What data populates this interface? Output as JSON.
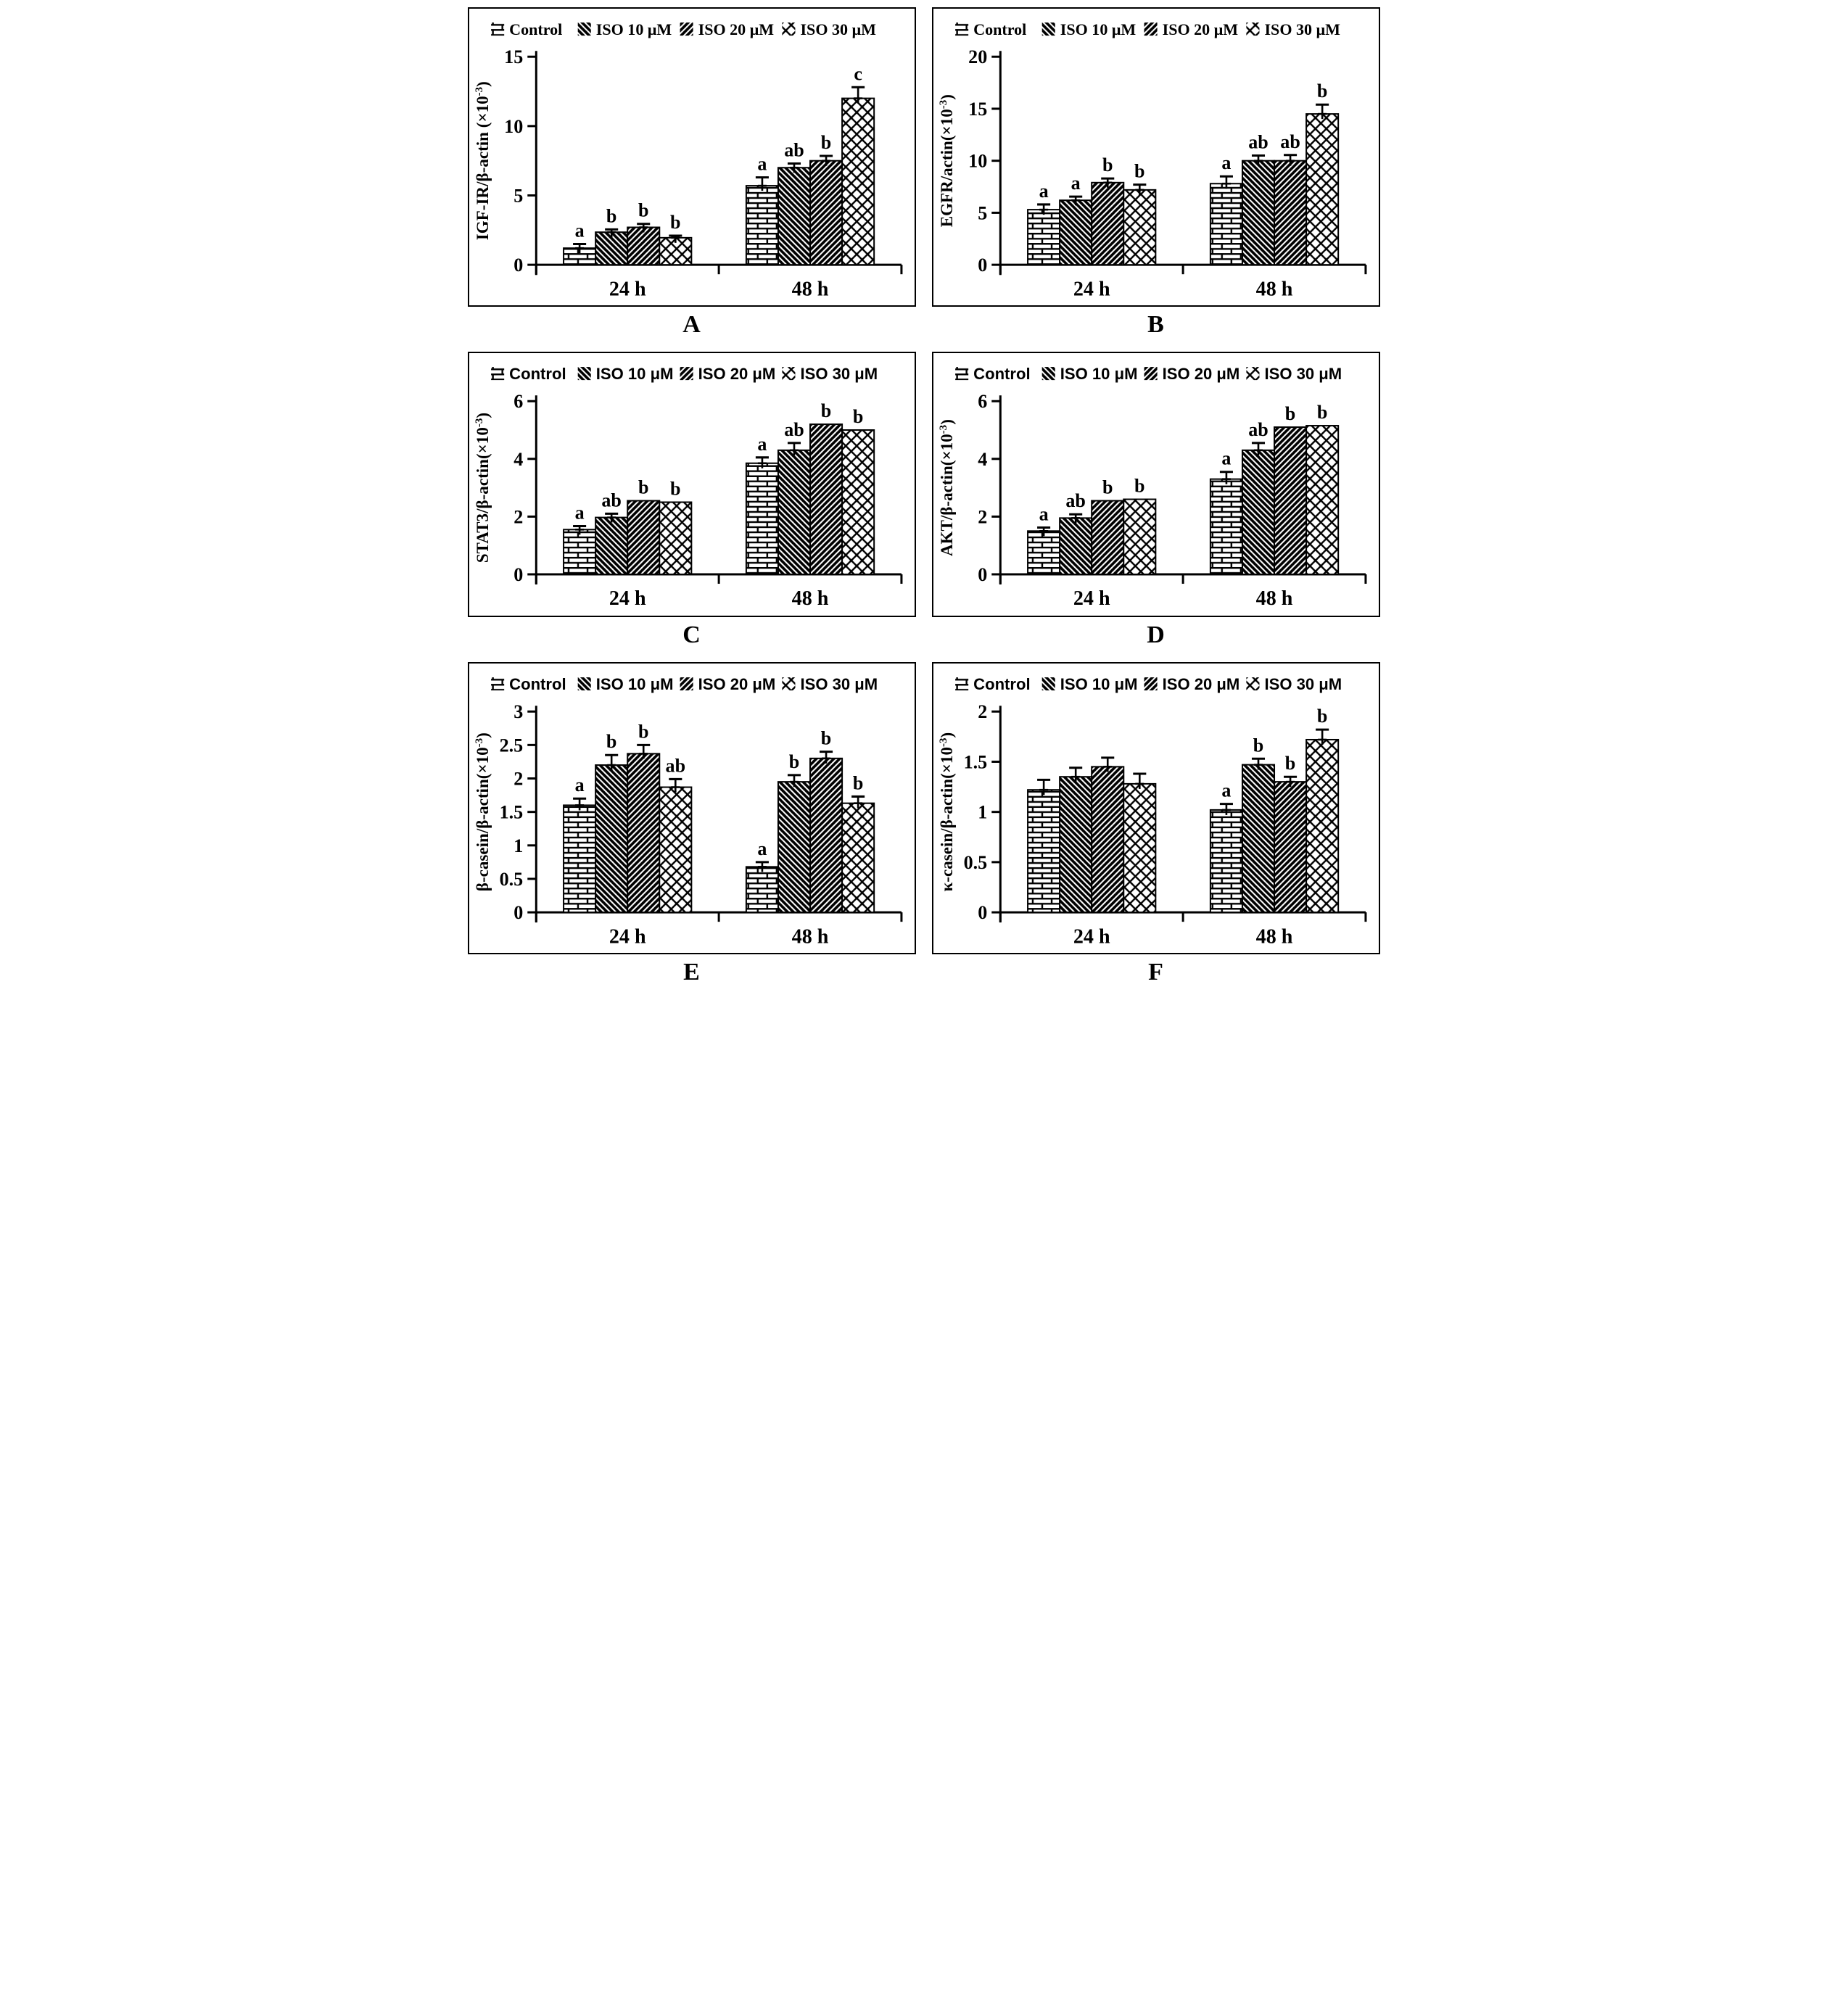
{
  "figure": {
    "background": "#ffffff",
    "ink": "#000000",
    "description_groups": [
      "24 h",
      "48 h"
    ]
  },
  "groups": [
    "24 h",
    "48 h"
  ],
  "legend": {
    "items": [
      {
        "label": "Control",
        "pattern": "brick",
        "icon": "brick-swatch-icon"
      },
      {
        "label": "ISO 10 μM",
        "pattern": "diag-down",
        "icon": "diagonal-down-swatch-icon"
      },
      {
        "label": "ISO 20 μM",
        "pattern": "diag-up",
        "icon": "diagonal-up-swatch-icon"
      },
      {
        "label": "ISO 30 μM",
        "pattern": "crosshatch",
        "icon": "crosshatch-swatch-icon"
      }
    ]
  },
  "chart_data": [
    {
      "type": "bar",
      "panel": "A",
      "title": "",
      "ylabel": "IGF-IR/β-actin (×10-3)",
      "ylabel_main": "IGF-IR/β-actin (×10",
      "ylabel_sup": "-3",
      "ylabel_close": ")",
      "ylim": [
        0,
        15
      ],
      "yticks": [
        0,
        5,
        10,
        15
      ],
      "categories": [
        "24 h",
        "48 h"
      ],
      "legend_font": "serif",
      "series": [
        {
          "name": "Control",
          "pattern": "brick",
          "values": [
            1.2,
            5.7
          ],
          "errors": [
            0.3,
            0.6
          ],
          "sig": [
            "a",
            "a"
          ]
        },
        {
          "name": "ISO 10 μM",
          "pattern": "diag-down",
          "values": [
            2.35,
            7.0
          ],
          "errors": [
            0.2,
            0.3
          ],
          "sig": [
            "b",
            "ab"
          ]
        },
        {
          "name": "ISO 20 μM",
          "pattern": "diag-up",
          "values": [
            2.7,
            7.5
          ],
          "errors": [
            0.25,
            0.35
          ],
          "sig": [
            "b",
            "b"
          ]
        },
        {
          "name": "ISO 30 μM",
          "pattern": "crosshatch",
          "values": [
            1.95,
            12.0
          ],
          "errors": [
            0.15,
            0.8
          ],
          "sig": [
            "b",
            "c"
          ]
        }
      ]
    },
    {
      "type": "bar",
      "panel": "B",
      "title": "",
      "ylabel": "EGFR/actin(×10-3)",
      "ylabel_main": "EGFR/actin(×10",
      "ylabel_sup": "-3",
      "ylabel_close": ")",
      "ylim": [
        0,
        20
      ],
      "yticks": [
        0,
        5,
        10,
        15,
        20
      ],
      "categories": [
        "24 h",
        "48 h"
      ],
      "legend_font": "serif",
      "series": [
        {
          "name": "Control",
          "pattern": "brick",
          "values": [
            5.3,
            7.8
          ],
          "errors": [
            0.5,
            0.7
          ],
          "sig": [
            "a",
            "a"
          ]
        },
        {
          "name": "ISO 10 μM",
          "pattern": "diag-down",
          "values": [
            6.2,
            10.0
          ],
          "errors": [
            0.35,
            0.5
          ],
          "sig": [
            "a",
            "ab"
          ]
        },
        {
          "name": "ISO 20 μM",
          "pattern": "diag-up",
          "values": [
            7.9,
            10.0
          ],
          "errors": [
            0.4,
            0.55
          ],
          "sig": [
            "b",
            "ab"
          ]
        },
        {
          "name": "ISO 30 μM",
          "pattern": "crosshatch",
          "values": [
            7.2,
            14.5
          ],
          "errors": [
            0.5,
            0.9
          ],
          "sig": [
            "b",
            "b"
          ]
        }
      ]
    },
    {
      "type": "bar",
      "panel": "C",
      "title": "",
      "ylabel": "STAT3/β-actin(×10-3)",
      "ylabel_main": "STAT3/β-actin(×10",
      "ylabel_sup": "-3",
      "ylabel_close": ")",
      "ylim": [
        0,
        6
      ],
      "yticks": [
        0,
        2,
        4,
        6
      ],
      "categories": [
        "24 h",
        "48 h"
      ],
      "legend_font": "sans",
      "series": [
        {
          "name": "Control",
          "pattern": "brick",
          "values": [
            1.55,
            3.85
          ],
          "errors": [
            0.12,
            0.2
          ],
          "sig": [
            "a",
            "a"
          ]
        },
        {
          "name": "ISO 10 μM",
          "pattern": "diag-down",
          "values": [
            1.97,
            4.3
          ],
          "errors": [
            0.13,
            0.25
          ],
          "sig": [
            "ab",
            "ab"
          ]
        },
        {
          "name": "ISO 20 μM",
          "pattern": "diag-up",
          "values": [
            2.55,
            5.2
          ],
          "errors": [
            0,
            0
          ],
          "sig": [
            "b",
            "b"
          ]
        },
        {
          "name": "ISO 30 μM",
          "pattern": "crosshatch",
          "values": [
            2.5,
            5.0
          ],
          "errors": [
            0,
            0
          ],
          "sig": [
            "b",
            "b"
          ]
        }
      ]
    },
    {
      "type": "bar",
      "panel": "D",
      "title": "",
      "ylabel": "AKT/β-actin(×10-3)",
      "ylabel_main": "AKT/β-actin(×10",
      "ylabel_sup": "-3",
      "ylabel_close": ")",
      "ylim": [
        0,
        6
      ],
      "yticks": [
        0,
        2,
        4,
        6
      ],
      "categories": [
        "24 h",
        "48 h"
      ],
      "legend_font": "sans",
      "series": [
        {
          "name": "Control",
          "pattern": "brick",
          "values": [
            1.5,
            3.3
          ],
          "errors": [
            0.12,
            0.25
          ],
          "sig": [
            "a",
            "a"
          ]
        },
        {
          "name": "ISO 10 μM",
          "pattern": "diag-down",
          "values": [
            1.95,
            4.3
          ],
          "errors": [
            0.13,
            0.25
          ],
          "sig": [
            "ab",
            "ab"
          ]
        },
        {
          "name": "ISO 20 μM",
          "pattern": "diag-up",
          "values": [
            2.55,
            5.1
          ],
          "errors": [
            0,
            0
          ],
          "sig": [
            "b",
            "b"
          ]
        },
        {
          "name": "ISO 30 μM",
          "pattern": "crosshatch",
          "values": [
            2.6,
            5.15
          ],
          "errors": [
            0,
            0
          ],
          "sig": [
            "b",
            "b"
          ]
        }
      ]
    },
    {
      "type": "bar",
      "panel": "E",
      "title": "",
      "ylabel": "β-casein/β-actin(×10-3)",
      "ylabel_main": "β-casein/β-actin(×10",
      "ylabel_sup": "-3",
      "ylabel_close": ")",
      "ylim": [
        0,
        3
      ],
      "yticks": [
        0,
        0.5,
        1,
        1.5,
        2,
        2.5,
        3
      ],
      "categories": [
        "24 h",
        "48 h"
      ],
      "legend_font": "sans",
      "series": [
        {
          "name": "Control",
          "pattern": "brick",
          "values": [
            1.6,
            0.68
          ],
          "errors": [
            0.1,
            0.07
          ],
          "sig": [
            "a",
            "a"
          ]
        },
        {
          "name": "ISO 10 μM",
          "pattern": "diag-down",
          "values": [
            2.2,
            1.95
          ],
          "errors": [
            0.15,
            0.1
          ],
          "sig": [
            "b",
            "b"
          ]
        },
        {
          "name": "ISO 20 μM",
          "pattern": "diag-up",
          "values": [
            2.37,
            2.3
          ],
          "errors": [
            0.13,
            0.1
          ],
          "sig": [
            "b",
            "b"
          ]
        },
        {
          "name": "ISO 30 μM",
          "pattern": "crosshatch",
          "values": [
            1.87,
            1.63
          ],
          "errors": [
            0.12,
            0.1
          ],
          "sig": [
            "ab",
            "b"
          ]
        }
      ]
    },
    {
      "type": "bar",
      "panel": "F",
      "title": "",
      "ylabel": "κ-casein/β-actin(×10-3)",
      "ylabel_main": "κ-casein/β-actin(×10",
      "ylabel_sup": "-3",
      "ylabel_close": ")",
      "ylim": [
        0,
        2
      ],
      "yticks": [
        0,
        0.5,
        1,
        1.5,
        2
      ],
      "categories": [
        "24 h",
        "48 h"
      ],
      "legend_font": "sans",
      "series": [
        {
          "name": "Control",
          "pattern": "brick",
          "values": [
            1.22,
            1.02
          ],
          "errors": [
            0.1,
            0.06
          ],
          "sig": [
            "",
            "a"
          ]
        },
        {
          "name": "ISO 10 μM",
          "pattern": "diag-down",
          "values": [
            1.35,
            1.47
          ],
          "errors": [
            0.09,
            0.06
          ],
          "sig": [
            "",
            "b"
          ]
        },
        {
          "name": "ISO 20 μM",
          "pattern": "diag-up",
          "values": [
            1.45,
            1.3
          ],
          "errors": [
            0.09,
            0.05
          ],
          "sig": [
            "",
            "b"
          ]
        },
        {
          "name": "ISO 30 μM",
          "pattern": "crosshatch",
          "values": [
            1.28,
            1.72
          ],
          "errors": [
            0.1,
            0.1
          ],
          "sig": [
            "",
            "b"
          ]
        }
      ]
    }
  ]
}
